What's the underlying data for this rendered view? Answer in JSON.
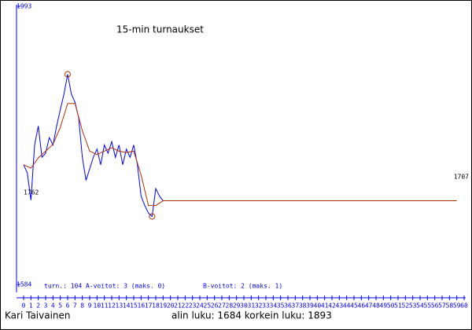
{
  "chart_data": {
    "type": "line",
    "title": "15-min turnaukset",
    "stats_text": "turn.: 104 A-voitot: 3   (maks. 0)",
    "stats_text_b": "B-voitot: 2 (maks. 1)",
    "author": "Kari Taivainen",
    "footer": "alin luku: 1684  korkein luku: 1893",
    "annotations": [
      {
        "text": "1762",
        "value": 1762
      },
      {
        "text": "1707",
        "value": 1707
      }
    ],
    "ylim": [
      1584,
      1993
    ],
    "yticks": [
      1584,
      1993
    ],
    "xlim": [
      0,
      60
    ],
    "xticks": [
      0,
      1,
      2,
      3,
      4,
      5,
      6,
      7,
      8,
      9,
      10,
      11,
      12,
      13,
      14,
      15,
      16,
      17,
      18,
      19,
      20,
      21,
      22,
      23,
      24,
      25,
      26,
      27,
      28,
      29,
      30,
      31,
      32,
      33,
      34,
      35,
      36,
      37,
      38,
      39,
      40,
      41,
      42,
      43,
      44,
      45,
      46,
      47,
      48,
      49,
      50,
      51,
      52,
      53,
      54,
      55,
      56,
      57,
      58,
      59,
      60
    ],
    "series": [
      {
        "color": "#0000ff",
        "x": [
          0,
          0.5,
          1,
          1.5,
          2,
          2.5,
          3,
          3.5,
          4,
          4.5,
          5,
          5.5,
          6,
          6.5,
          7,
          7.5,
          8,
          8.5,
          9,
          9.5,
          10,
          10.5,
          11,
          11.5,
          12,
          12.5,
          13,
          13.5,
          14,
          14.5,
          15,
          15.5,
          16,
          16.5,
          17,
          17.5,
          18,
          18.5,
          19
        ],
        "values": [
          1760,
          1748,
          1708,
          1789,
          1817,
          1771,
          1777,
          1800,
          1789,
          1817,
          1841,
          1864,
          1893,
          1864,
          1852,
          1829,
          1771,
          1737,
          1754,
          1771,
          1783,
          1760,
          1789,
          1777,
          1794,
          1771,
          1789,
          1760,
          1783,
          1771,
          1789,
          1760,
          1714,
          1700,
          1689,
          1684,
          1725,
          1714,
          1707
        ]
      },
      {
        "color": "#b03000",
        "x": [
          0,
          1,
          2,
          3,
          4,
          5,
          6,
          7,
          8,
          9,
          10,
          11,
          12,
          13,
          14,
          15,
          16,
          17,
          18,
          19,
          59
        ],
        "values": [
          1760,
          1755,
          1770,
          1780,
          1790,
          1815,
          1850,
          1850,
          1810,
          1780,
          1775,
          1780,
          1785,
          1780,
          1778,
          1780,
          1745,
          1700,
          1700,
          1707,
          1707
        ]
      }
    ]
  }
}
